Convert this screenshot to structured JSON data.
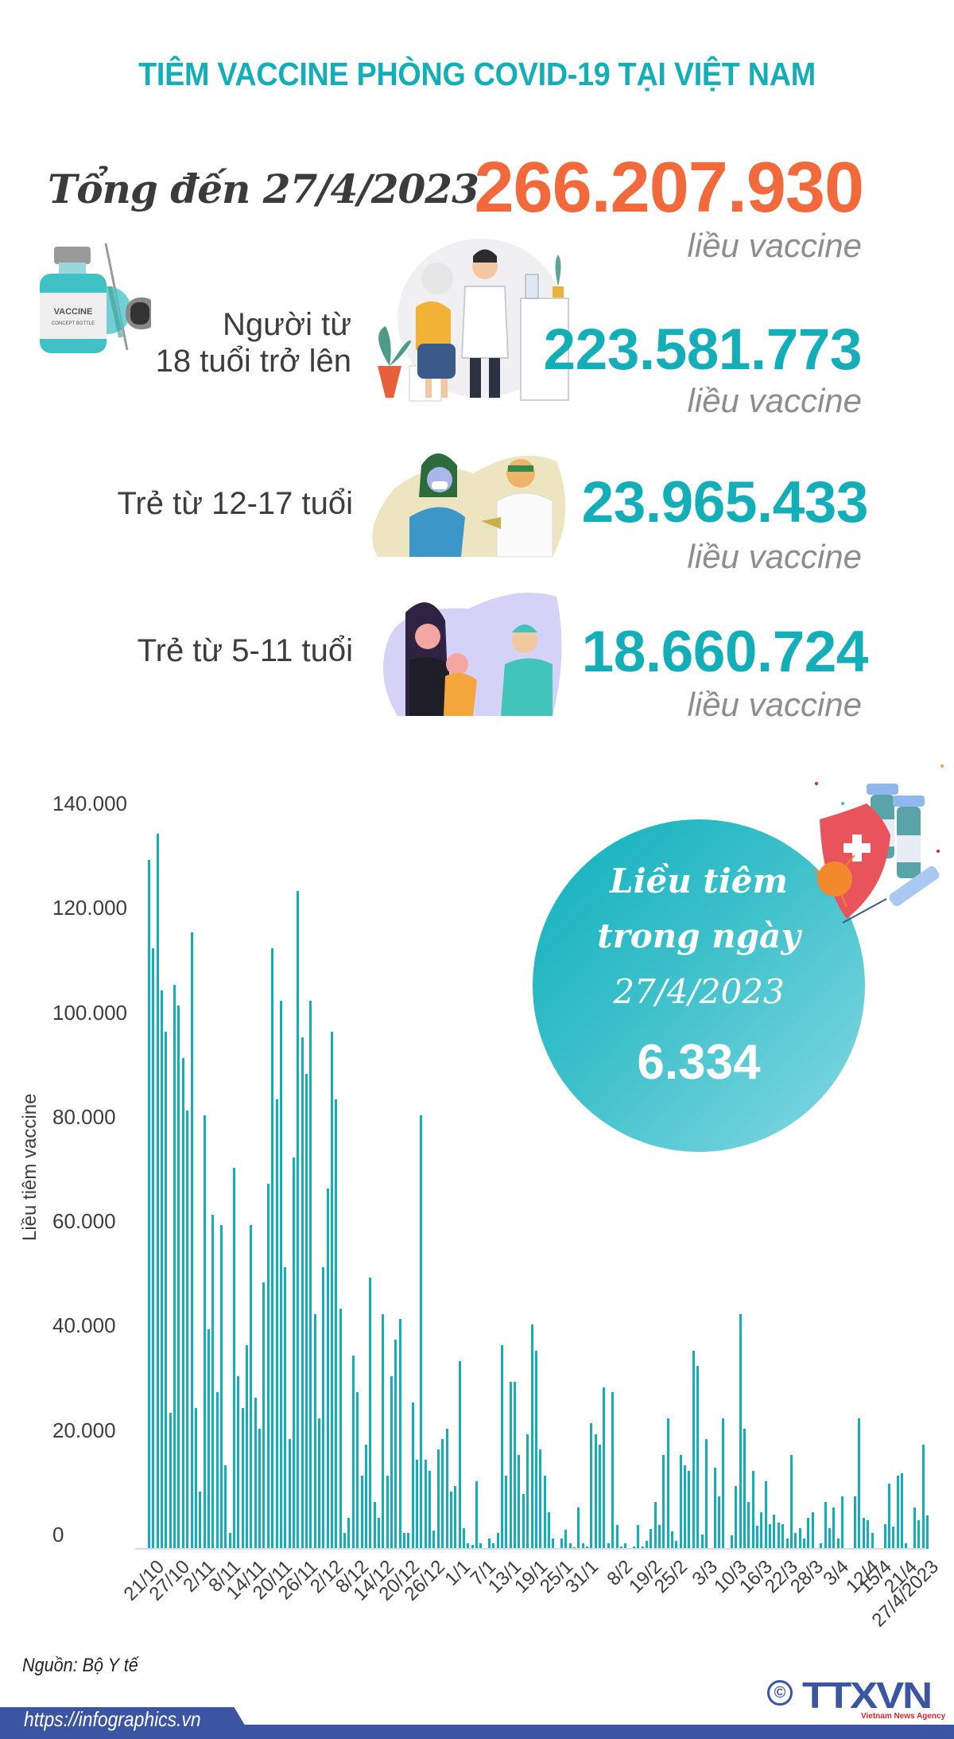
{
  "title": "TIÊM VACCINE PHÒNG COVID-19 TẠI VIỆT NAM",
  "summary": {
    "total_label": "Tổng đến 27/4/2023",
    "total_value": "266.207.930",
    "total_unit": "liều vaccine",
    "groups": [
      {
        "label_line1": "Người từ",
        "label_line2": "18 tuổi trở lên",
        "value": "223.581.773",
        "unit": "liều vaccine"
      },
      {
        "label_line1": "Trẻ từ 12-17 tuổi",
        "label_line2": "",
        "value": "23.965.433",
        "unit": "liều vaccine"
      },
      {
        "label_line1": "Trẻ từ 5-11 tuổi",
        "label_line2": "",
        "value": "18.660.724",
        "unit": "liều vaccine"
      }
    ],
    "bottle_label": "VACCINE",
    "bottle_sublabel": "CONCEPT BOTTLE"
  },
  "daily": {
    "line1": "Liều tiêm",
    "line2": "trong ngày",
    "date": "27/4/2023",
    "value": "6.334"
  },
  "colors": {
    "accent_teal": "#14aeb8",
    "accent_orange": "#f26a3b",
    "footer_blue": "#3b55a3",
    "unit_gray": "#8d8d8d"
  },
  "footer": {
    "source": "Nguồn: Bộ Y tế",
    "url": "https://infographics.vn",
    "logo": "TTXVN",
    "logo_copyright": "©",
    "logo_sub": "Vietnam News Agency"
  },
  "chart_data": {
    "type": "bar",
    "title": "",
    "xlabel": "",
    "ylabel": "Liều tiêm vaccine",
    "ylim": [
      0,
      140000
    ],
    "yticks": [
      0,
      20000,
      40000,
      60000,
      80000,
      100000,
      120000,
      140000
    ],
    "ytick_labels": [
      "0",
      "20.000",
      "40.000",
      "60.000",
      "80.000",
      "100.000",
      "120.000",
      "140.000"
    ],
    "grid": false,
    "legend": null,
    "x_tick_labels": [
      "21/10",
      "27/10",
      "2/11",
      "8/11",
      "14/11",
      "20/11",
      "26/11",
      "2/12",
      "8/12",
      "14/12",
      "20/12",
      "26/12",
      "1/1",
      "7/1",
      "13/1",
      "19/1",
      "25/1",
      "31/1",
      "8/2",
      "19/2",
      "25/2",
      "3/3",
      "10/3",
      "16/3",
      "22/3",
      "28/3",
      "3/4",
      "12/4",
      "15/4",
      "21/4",
      "27/4/2023"
    ],
    "x_tick_positions": [
      0,
      6,
      12,
      18,
      24,
      30,
      36,
      42,
      48,
      54,
      60,
      66,
      72,
      78,
      84,
      90,
      96,
      102,
      110,
      117,
      123,
      130,
      137,
      143,
      149,
      155,
      161,
      168,
      171,
      177,
      182
    ],
    "series": [
      {
        "name": "Liều tiêm vaccine",
        "color": "#14aeb8",
        "values": [
          132000,
          115000,
          137000,
          107000,
          99000,
          26000,
          108000,
          104000,
          94000,
          84000,
          118000,
          27000,
          11000,
          83000,
          42000,
          64000,
          30000,
          62000,
          16000,
          3000,
          73000,
          33000,
          27000,
          39000,
          62000,
          29000,
          23000,
          51000,
          70000,
          115000,
          86000,
          105000,
          54000,
          21000,
          75000,
          126000,
          98000,
          91000,
          105000,
          45000,
          25000,
          54000,
          69000,
          99000,
          86000,
          46000,
          3000,
          6000,
          37000,
          30000,
          14000,
          20000,
          52000,
          9000,
          6000,
          45000,
          14000,
          33000,
          40000,
          44000,
          3000,
          3000,
          28000,
          17000,
          83000,
          17000,
          15000,
          3500,
          19000,
          21000,
          23000,
          11000,
          12000,
          36000,
          4000,
          1000,
          700,
          13000,
          1000,
          0,
          2000,
          1000,
          3000,
          39000,
          14000,
          32000,
          32000,
          18000,
          10500,
          22000,
          43000,
          38000,
          19000,
          14000,
          7000,
          2000,
          0,
          2000,
          3700,
          1000,
          300,
          8000,
          1000,
          400,
          24000,
          22000,
          20000,
          31000,
          1000,
          30000,
          4500,
          400,
          1000,
          0,
          400,
          4600,
          500,
          1500,
          3800,
          9000,
          4600,
          18000,
          25000,
          3400,
          1500,
          18000,
          16000,
          15000,
          38000,
          35000,
          2700,
          21000,
          0,
          15500,
          10000,
          25000,
          0,
          2600,
          12000,
          45000,
          23000,
          9000,
          15000,
          4400,
          7000,
          13000,
          4800,
          6500,
          5000,
          4800,
          2000,
          18000,
          3000,
          4000,
          2000,
          6000,
          7000,
          200,
          1000,
          9000,
          4000,
          8000,
          2000,
          10000,
          0,
          0,
          10000,
          25000,
          6000,
          5500,
          3000,
          200,
          200,
          4800,
          12500,
          4200,
          14000,
          14500,
          1000,
          200,
          8000,
          5500,
          20000,
          6334
        ]
      }
    ],
    "annotation": {
      "text": "Liều tiêm trong ngày 27/4/2023",
      "value": 6334
    }
  }
}
